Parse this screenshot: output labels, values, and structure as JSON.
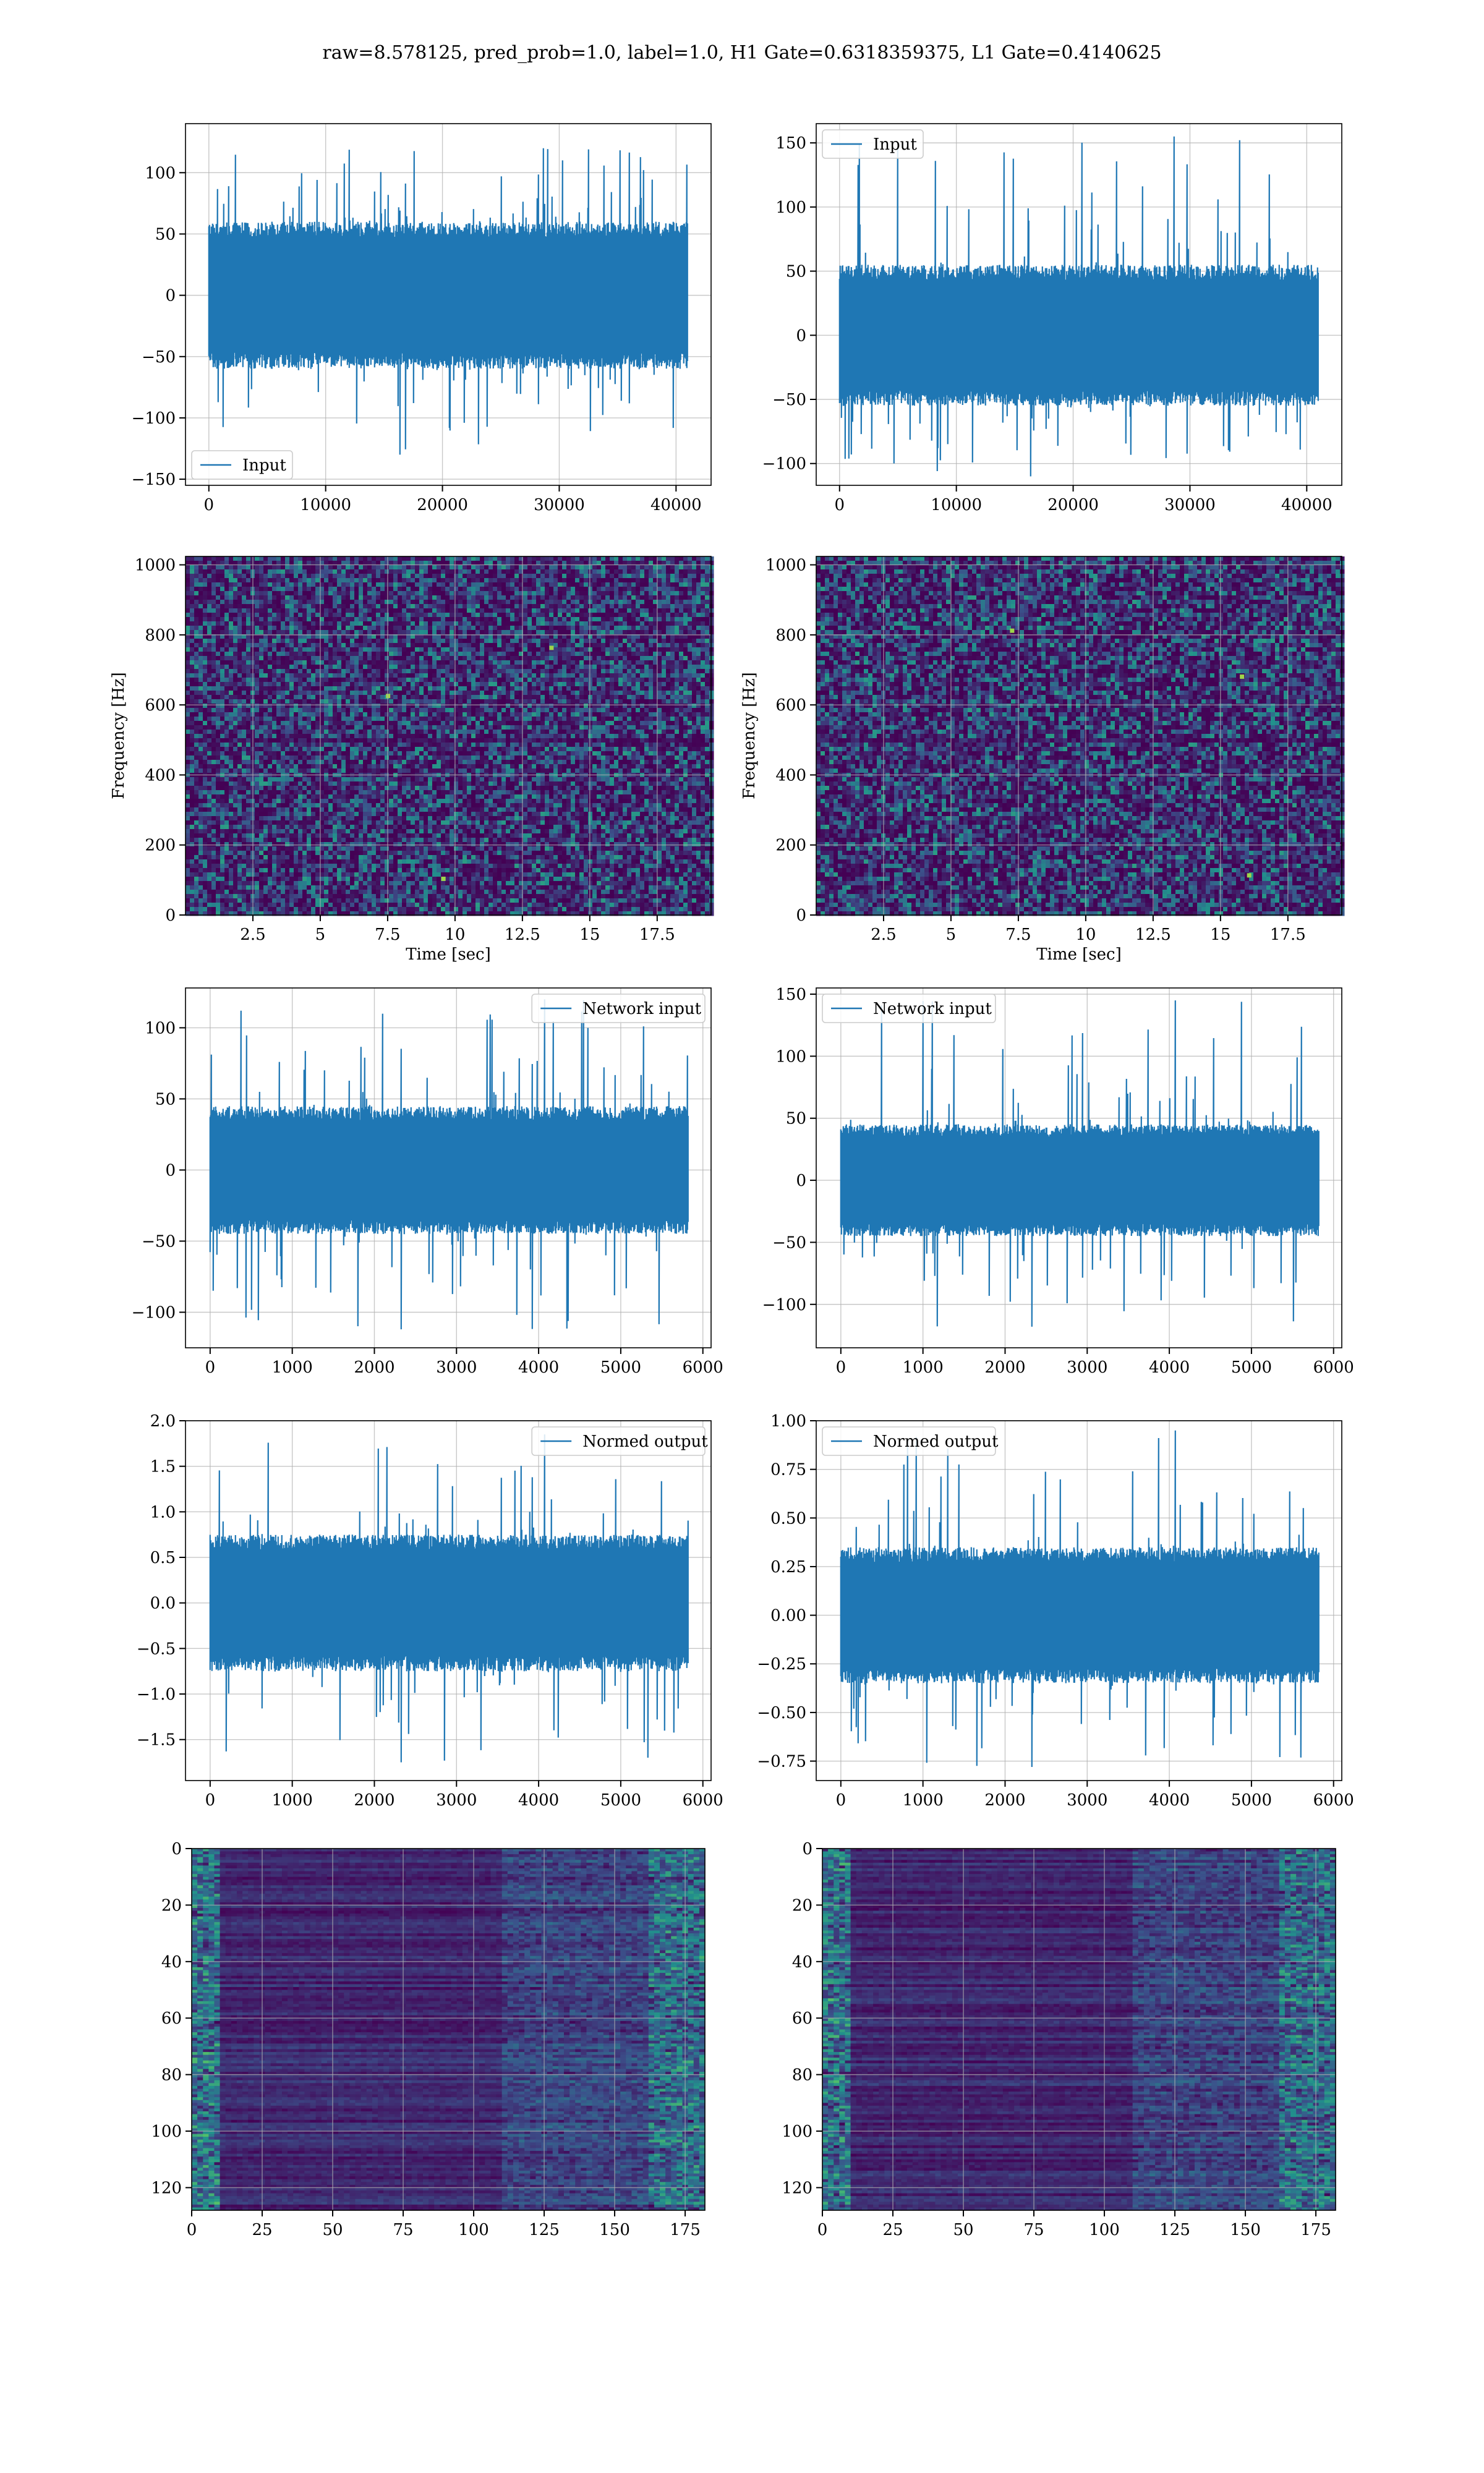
{
  "figure": {
    "title": "raw=8.578125, pred_prob=1.0, label=1.0, H1 Gate=0.6318359375, L1 Gate=0.4140625",
    "line_color": "#1f77b4"
  },
  "chart_data": [
    {
      "id": "h1-input",
      "type": "line",
      "xlim": [
        -2000,
        43000
      ],
      "ylim": [
        -155,
        140
      ],
      "xticks": [
        0,
        10000,
        20000,
        30000,
        40000
      ],
      "yticks": [
        -150,
        -100,
        -50,
        0,
        50,
        100
      ],
      "n_samples": 40960,
      "band": [
        -60,
        60
      ],
      "spike_max": 120,
      "spike_min": -130,
      "grid": true,
      "legend": "lower-left",
      "series": [
        {
          "name": "Input"
        }
      ]
    },
    {
      "id": "l1-input",
      "type": "line",
      "xlim": [
        -2000,
        43000
      ],
      "ylim": [
        -117,
        165
      ],
      "xticks": [
        0,
        10000,
        20000,
        30000,
        40000
      ],
      "yticks": [
        -100,
        -50,
        0,
        50,
        100,
        150
      ],
      "n_samples": 40960,
      "band": [
        -55,
        55
      ],
      "spike_max": 155,
      "spike_min": -110,
      "grid": true,
      "legend": "upper-left",
      "series": [
        {
          "name": "Input"
        }
      ]
    },
    {
      "id": "h1-spectrogram",
      "type": "heatmap",
      "xlim": [
        0,
        19.5
      ],
      "ylim": [
        0,
        1024
      ],
      "xticks": [
        2.5,
        5.0,
        7.5,
        10.0,
        12.5,
        15.0,
        17.5
      ],
      "yticks": [
        0,
        200,
        400,
        600,
        800,
        1000
      ],
      "xlabel": "Time [sec]",
      "ylabel": "Frequency [Hz]",
      "colormap": [
        "#440154",
        "#3b528b",
        "#21918c",
        "#5ec962",
        "#fde725"
      ],
      "grid": true
    },
    {
      "id": "l1-spectrogram",
      "type": "heatmap",
      "xlim": [
        0,
        19.5
      ],
      "ylim": [
        0,
        1024
      ],
      "xticks": [
        2.5,
        5.0,
        7.5,
        10.0,
        12.5,
        15.0,
        17.5
      ],
      "yticks": [
        0,
        200,
        400,
        600,
        800,
        1000
      ],
      "xlabel": "Time [sec]",
      "ylabel": "Frequency [Hz]",
      "colormap": [
        "#440154",
        "#3b528b",
        "#21918c",
        "#5ec962",
        "#fde725"
      ],
      "grid": true
    },
    {
      "id": "h1-network-input",
      "type": "line",
      "xlim": [
        -300,
        6100
      ],
      "ylim": [
        -125,
        128
      ],
      "xticks": [
        0,
        1000,
        2000,
        3000,
        4000,
        5000,
        6000
      ],
      "yticks": [
        -100,
        -50,
        0,
        50,
        100
      ],
      "n_samples": 5820,
      "band": [
        -45,
        45
      ],
      "spike_max": 120,
      "spike_min": -112,
      "grid": true,
      "legend": "upper-right",
      "series": [
        {
          "name": "Network input"
        }
      ]
    },
    {
      "id": "l1-network-input",
      "type": "line",
      "xlim": [
        -300,
        6100
      ],
      "ylim": [
        -135,
        155
      ],
      "xticks": [
        0,
        1000,
        2000,
        3000,
        4000,
        5000,
        6000
      ],
      "yticks": [
        -100,
        -50,
        0,
        50,
        100,
        150
      ],
      "n_samples": 5820,
      "band": [
        -45,
        45
      ],
      "spike_max": 145,
      "spike_min": -118,
      "grid": true,
      "legend": "upper-left",
      "series": [
        {
          "name": "Network input"
        }
      ]
    },
    {
      "id": "h1-normed-output",
      "type": "line",
      "xlim": [
        -300,
        6100
      ],
      "ylim": [
        -1.95,
        2.0
      ],
      "xticks": [
        0,
        1000,
        2000,
        3000,
        4000,
        5000,
        6000
      ],
      "yticks": [
        -1.5,
        -1.0,
        -0.5,
        0.0,
        0.5,
        1.0,
        1.5,
        2.0
      ],
      "ytick_labels": [
        "−1.5",
        "−1.0",
        "−0.5",
        "0.0",
        "0.5",
        "1.0",
        "1.5",
        "2.0"
      ],
      "n_samples": 5820,
      "band": [
        -0.75,
        0.75
      ],
      "spike_max": 1.85,
      "spike_min": -1.75,
      "grid": true,
      "legend": "upper-right",
      "series": [
        {
          "name": "Normed output"
        }
      ]
    },
    {
      "id": "l1-normed-output",
      "type": "line",
      "xlim": [
        -300,
        6100
      ],
      "ylim": [
        -0.85,
        1.0
      ],
      "xticks": [
        0,
        1000,
        2000,
        3000,
        4000,
        5000,
        6000
      ],
      "yticks": [
        -0.75,
        -0.5,
        -0.25,
        0.0,
        0.25,
        0.5,
        0.75,
        1.0
      ],
      "ytick_labels": [
        "−0.75",
        "−0.50",
        "−0.25",
        "0.00",
        "0.25",
        "0.50",
        "0.75",
        "1.00"
      ],
      "n_samples": 5820,
      "band": [
        -0.35,
        0.35
      ],
      "spike_max": 0.95,
      "spike_min": -0.78,
      "grid": true,
      "legend": "upper-left",
      "series": [
        {
          "name": "Normed output"
        }
      ]
    },
    {
      "id": "h1-feature-map",
      "type": "heatmap",
      "xlim": [
        0,
        182
      ],
      "ylim": [
        128,
        0
      ],
      "xticks": [
        0,
        25,
        50,
        75,
        100,
        125,
        150,
        175
      ],
      "yticks": [
        0,
        20,
        40,
        60,
        80,
        100,
        120
      ],
      "rows": 128,
      "cols": 182,
      "colormap": [
        "#440154",
        "#3b528b",
        "#21918c",
        "#5ec962",
        "#fde725"
      ],
      "grid": true
    },
    {
      "id": "l1-feature-map",
      "type": "heatmap",
      "xlim": [
        0,
        182
      ],
      "ylim": [
        128,
        0
      ],
      "xticks": [
        0,
        25,
        50,
        75,
        100,
        125,
        150,
        175
      ],
      "yticks": [
        0,
        20,
        40,
        60,
        80,
        100,
        120
      ],
      "rows": 128,
      "cols": 182,
      "colormap": [
        "#440154",
        "#3b528b",
        "#21918c",
        "#5ec962",
        "#fde725"
      ],
      "grid": true
    }
  ]
}
